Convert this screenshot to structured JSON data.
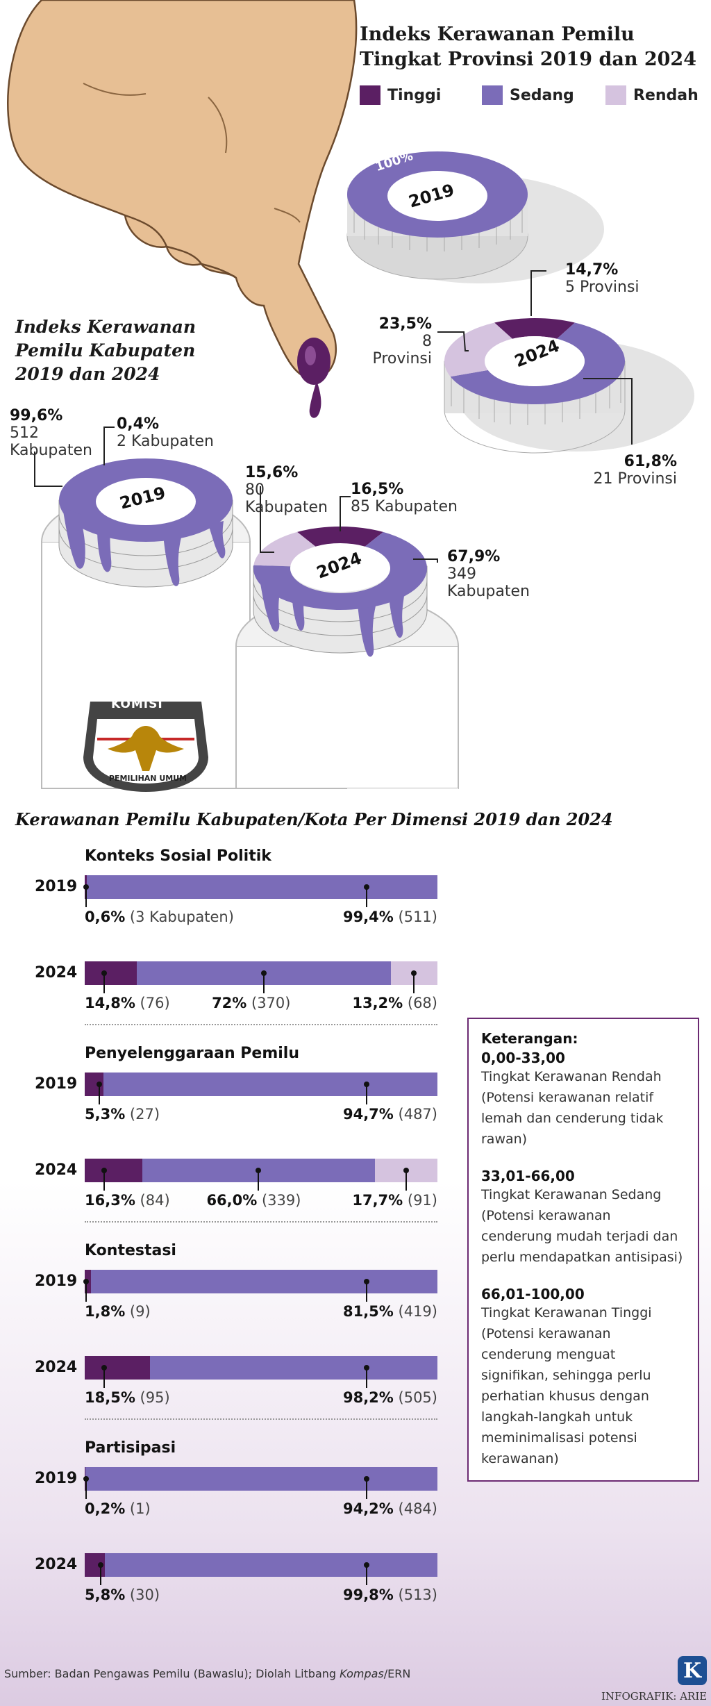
{
  "header": {
    "line1": "Indeks Kerawanan Pemilu",
    "line2": "Tingkat Provinsi 2019 dan 2024"
  },
  "legend": [
    {
      "label": "Tinggi",
      "color": "#5b1f63"
    },
    {
      "label": "Sedang",
      "color": "#7b6cb8"
    },
    {
      "label": "Rendah",
      "color": "#d5c3df"
    }
  ],
  "colors": {
    "tinggi": "#5b1f63",
    "sedang": "#7b6cb8",
    "rendah": "#d5c3df"
  },
  "province": {
    "d2019": {
      "year": "2019",
      "pct_label": "100%"
    },
    "d2024": {
      "year": "2024",
      "tinggi_pct": "14,7%",
      "tinggi_count": "5 Provinsi",
      "rendah_pct": "23,5%",
      "rendah_count": "8 Provinsi",
      "sedang_pct": "61,8%",
      "sedang_count": "21 Provinsi"
    }
  },
  "kab_title": {
    "line1": "Indeks Kerawanan",
    "line2": "Pemilu Kabupaten",
    "line3": "2019 dan 2024"
  },
  "kab": {
    "d2019": {
      "year": "2019",
      "sedang_pct": "99,6%",
      "sedang_n": "512",
      "sedang_unit": "Kabupaten",
      "tinggi_pct": "0,4%",
      "tinggi_count": "2 Kabupaten"
    },
    "d2024": {
      "year": "2024",
      "rendah_pct": "15,6%",
      "rendah_n": "80",
      "rendah_unit": "Kabupaten",
      "tinggi_pct": "16,5%",
      "tinggi_count": "85 Kabupaten",
      "sedang_pct": "67,9%",
      "sedang_n": "349",
      "sedang_unit": "Kabupaten"
    }
  },
  "logo_text": {
    "top": "KOMISI",
    "bottom": "PEMILIHAN UMUM"
  },
  "dim_section_title": "Kerawanan Pemilu Kabupaten/Kota Per Dimensi 2019 dan 2024",
  "chart_data": {
    "type": "bar",
    "title": "Kerawanan Pemilu Kabupaten/Kota Per Dimensi 2019 dan 2024",
    "stacked": true,
    "series_names": [
      "Tinggi",
      "Sedang",
      "Rendah"
    ],
    "dimensions": [
      {
        "name": "Konteks Sosial Politik",
        "rows": [
          {
            "year": "2019",
            "segments": [
              {
                "series": "Tinggi",
                "value": 0.6,
                "label": "0,6%",
                "count": "(3 Kabupaten)"
              },
              {
                "series": "Sedang",
                "value": 99.4,
                "label": "99,4%",
                "count": "(511)"
              }
            ]
          },
          {
            "year": "2024",
            "segments": [
              {
                "series": "Tinggi",
                "value": 14.8,
                "label": "14,8%",
                "count": "(76)"
              },
              {
                "series": "Sedang",
                "value": 72,
                "label": "72%",
                "count": "(370)"
              },
              {
                "series": "Rendah",
                "value": 13.2,
                "label": "13,2%",
                "count": "(68)"
              }
            ]
          }
        ]
      },
      {
        "name": "Penyelenggaraan Pemilu",
        "rows": [
          {
            "year": "2019",
            "segments": [
              {
                "series": "Tinggi",
                "value": 5.3,
                "label": "5,3%",
                "count": "(27)"
              },
              {
                "series": "Sedang",
                "value": 94.7,
                "label": "94,7%",
                "count": "(487)"
              }
            ]
          },
          {
            "year": "2024",
            "segments": [
              {
                "series": "Tinggi",
                "value": 16.3,
                "label": "16,3%",
                "count": "(84)"
              },
              {
                "series": "Sedang",
                "value": 66.0,
                "label": "66,0%",
                "count": "(339)"
              },
              {
                "series": "Rendah",
                "value": 17.7,
                "label": "17,7%",
                "count": "(91)"
              }
            ]
          }
        ]
      },
      {
        "name": "Kontestasi",
        "rows": [
          {
            "year": "2019",
            "segments": [
              {
                "series": "Tinggi",
                "value": 1.8,
                "label": "1,8%",
                "count": "(9)"
              },
              {
                "series": "Sedang",
                "value": 81.5,
                "label": "81,5%",
                "count": "(419)"
              }
            ]
          },
          {
            "year": "2024",
            "segments": [
              {
                "series": "Tinggi",
                "value": 18.5,
                "label": "18,5%",
                "count": "(95)"
              },
              {
                "series": "Sedang",
                "value": 98.2,
                "label": "98,2%",
                "count": "(505)"
              }
            ]
          }
        ]
      },
      {
        "name": "Partisipasi",
        "rows": [
          {
            "year": "2019",
            "segments": [
              {
                "series": "Tinggi",
                "value": 0.2,
                "label": "0,2%",
                "count": "(1)"
              },
              {
                "series": "Sedang",
                "value": 94.2,
                "label": "94,2%",
                "count": "(484)"
              }
            ]
          },
          {
            "year": "2024",
            "segments": [
              {
                "series": "Tinggi",
                "value": 5.8,
                "label": "5,8%",
                "count": "(30)"
              },
              {
                "series": "Sedang",
                "value": 99.8,
                "label": "99,8%",
                "count": "(513)"
              }
            ]
          }
        ]
      }
    ]
  },
  "keterangan": {
    "title": "Keterangan:",
    "items": [
      {
        "range": "0,00-33,00",
        "text": "Tingkat Kerawanan Rendah (Potensi kerawanan relatif lemah dan cenderung tidak rawan)"
      },
      {
        "range": "33,01-66,00",
        "text": "Tingkat Kerawanan Sedang (Potensi kerawanan cenderung mudah terjadi dan perlu mendapatkan antisipasi)"
      },
      {
        "range": "66,01-100,00",
        "text": "Tingkat Kerawanan Tinggi (Potensi kerawanan cenderung menguat signifikan, sehingga perlu perhatian khusus dengan langkah-langkah untuk meminimalisasi potensi kerawanan)"
      }
    ]
  },
  "footer": {
    "source_prefix": "Sumber: Badan Pengawas Pemilu (Bawaslu); Diolah Litbang ",
    "source_italic": "Kompas",
    "source_suffix": "/ERN",
    "credit": "INFOGRAFIK: ARIE",
    "logo_letter": "K"
  }
}
